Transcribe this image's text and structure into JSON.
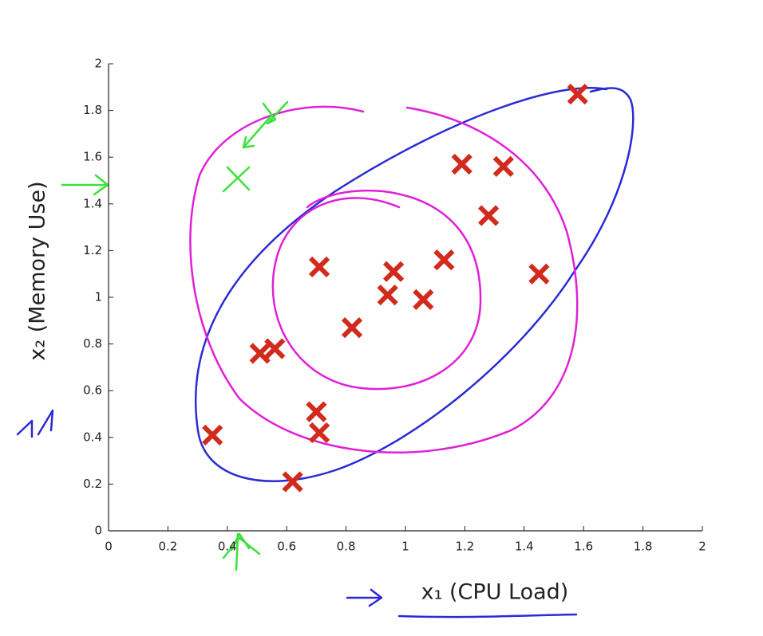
{
  "chart_data": {
    "type": "scatter",
    "xlabel": "x₁ (CPU Load)",
    "ylabel": "x₂ (Memory Use)",
    "x": [
      1.58,
      1.19,
      1.33,
      1.28,
      0.71,
      0.96,
      1.13,
      1.45,
      0.94,
      1.06,
      0.82,
      0.51,
      0.56,
      0.7,
      0.71,
      0.35,
      0.62
    ],
    "series": [
      {
        "color": "#d22a1c",
        "values": [
          1.87,
          1.57,
          1.56,
          1.35,
          1.13,
          1.11,
          1.16,
          1.1,
          1.01,
          0.99,
          0.87,
          0.76,
          0.78,
          0.51,
          0.42,
          0.41,
          0.21
        ]
      }
    ],
    "xlim": [
      0,
      2
    ],
    "ylim": [
      0,
      2
    ],
    "xticks": [
      0,
      0.2,
      0.4,
      0.6,
      0.8,
      1,
      1.2,
      1.4,
      1.6,
      1.8,
      2
    ],
    "yticks": [
      0,
      0.2,
      0.4,
      0.6,
      0.8,
      1,
      1.2,
      1.4,
      1.6,
      1.8,
      2
    ]
  }
}
